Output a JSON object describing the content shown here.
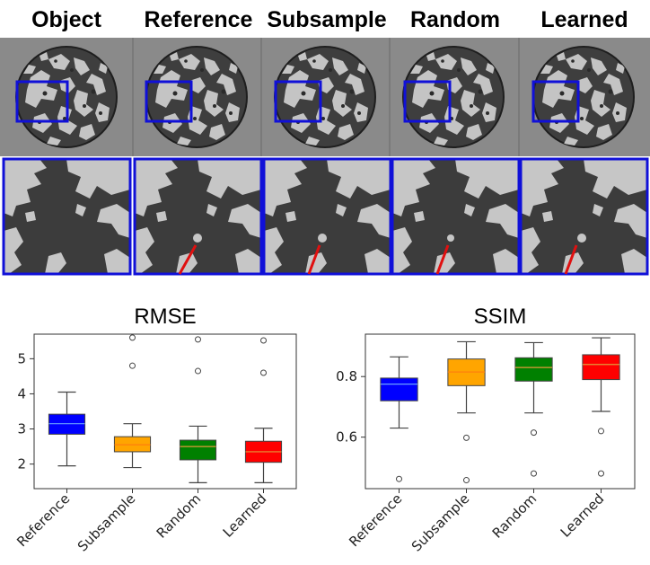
{
  "columns": [
    {
      "label": "Object"
    },
    {
      "label": "Reference"
    },
    {
      "label": "Subsample"
    },
    {
      "label": "Random"
    },
    {
      "label": "Learned"
    }
  ],
  "colors": {
    "frame": "#8a8a8a",
    "highlight_box": "#1010d8",
    "arrow": "#e01010",
    "phantom_dark": "#3a3a3a",
    "phantom_light": "#c8c8c8"
  },
  "chart_data": [
    {
      "type": "box",
      "title": "RMSE",
      "categories": [
        "Reference",
        "Subsample",
        "Random",
        "Learned"
      ],
      "colors": [
        "#0000ff",
        "#ffa500",
        "#008000",
        "#ff0000"
      ],
      "ylim": [
        1.3,
        5.7
      ],
      "yticks": [
        2,
        3,
        4,
        5
      ],
      "ytick_labels": [
        "2",
        "3",
        "4",
        "5"
      ],
      "boxes": [
        {
          "whislo": 1.95,
          "q1": 2.85,
          "med": 3.15,
          "q3": 3.42,
          "whishi": 4.05,
          "fliers": []
        },
        {
          "whislo": 1.9,
          "q1": 2.35,
          "med": 2.55,
          "q3": 2.78,
          "whishi": 3.15,
          "fliers": [
            4.8,
            5.6
          ]
        },
        {
          "whislo": 1.47,
          "q1": 2.12,
          "med": 2.5,
          "q3": 2.68,
          "whishi": 3.08,
          "fliers": [
            4.65,
            5.55
          ]
        },
        {
          "whislo": 1.47,
          "q1": 2.05,
          "med": 2.35,
          "q3": 2.65,
          "whishi": 3.02,
          "fliers": [
            4.6,
            5.52
          ]
        }
      ]
    },
    {
      "type": "box",
      "title": "SSIM",
      "categories": [
        "Reference",
        "Subsample",
        "Random",
        "Learned"
      ],
      "colors": [
        "#0000ff",
        "#ffa500",
        "#008000",
        "#ff0000"
      ],
      "ylim": [
        0.43,
        0.94
      ],
      "yticks": [
        0.6,
        0.8
      ],
      "ytick_labels": [
        "0.6",
        "0.8"
      ],
      "boxes": [
        {
          "whislo": 0.63,
          "q1": 0.72,
          "med": 0.775,
          "q3": 0.795,
          "whishi": 0.865,
          "fliers": [
            0.462
          ]
        },
        {
          "whislo": 0.68,
          "q1": 0.77,
          "med": 0.815,
          "q3": 0.858,
          "whishi": 0.915,
          "fliers": [
            0.598,
            0.458
          ]
        },
        {
          "whislo": 0.68,
          "q1": 0.785,
          "med": 0.83,
          "q3": 0.862,
          "whishi": 0.912,
          "fliers": [
            0.615,
            0.48
          ]
        },
        {
          "whislo": 0.685,
          "q1": 0.79,
          "med": 0.84,
          "q3": 0.872,
          "whishi": 0.928,
          "fliers": [
            0.62,
            0.48
          ]
        }
      ]
    }
  ]
}
